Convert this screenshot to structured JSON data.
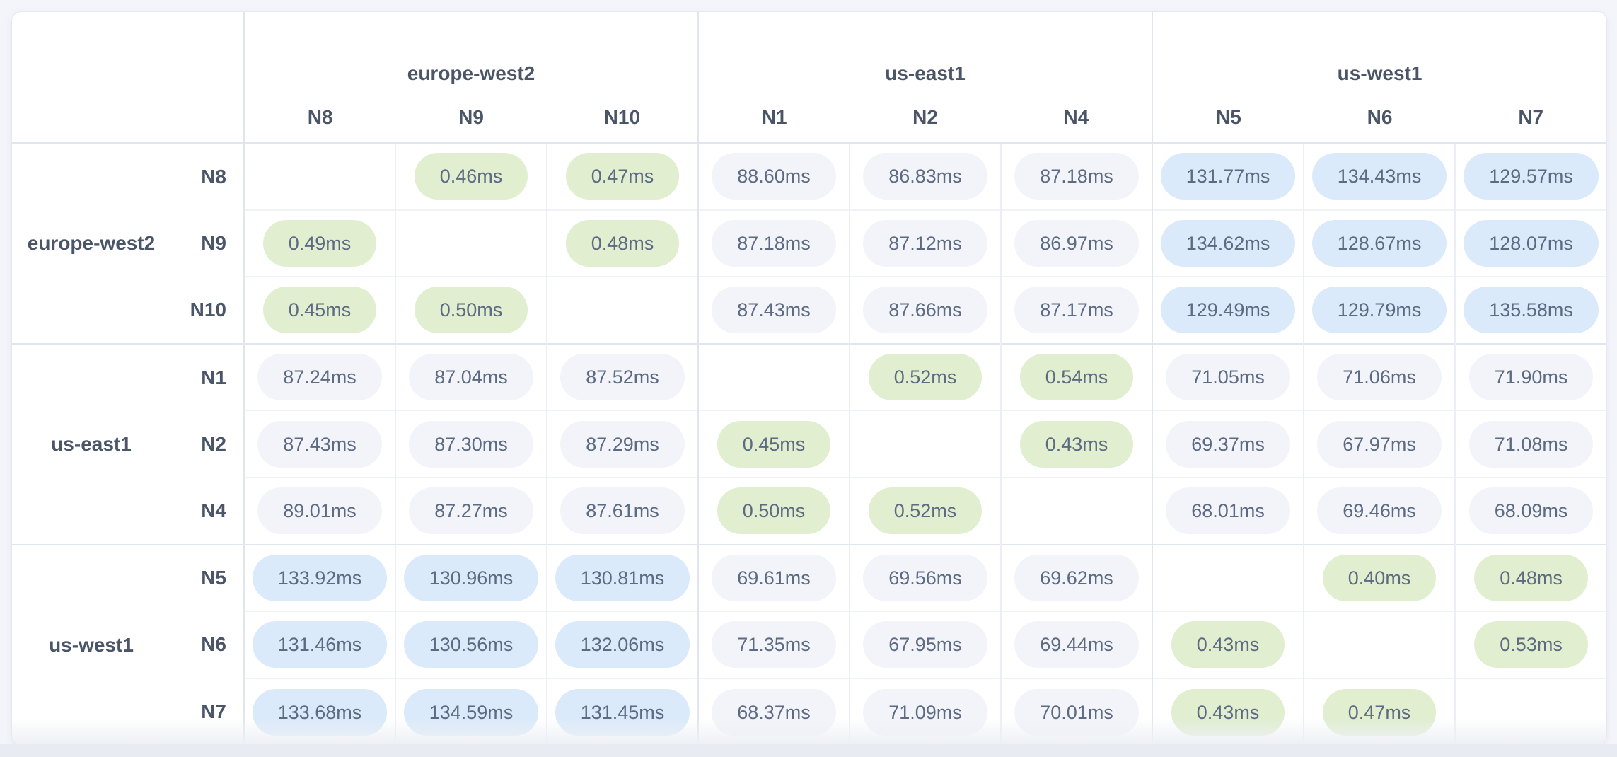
{
  "matrix": {
    "unit": "ms",
    "column_groups": [
      {
        "region": "europe-west2",
        "nodes": [
          "N8",
          "N9",
          "N10"
        ]
      },
      {
        "region": "us-east1",
        "nodes": [
          "N1",
          "N2",
          "N4"
        ]
      },
      {
        "region": "us-west1",
        "nodes": [
          "N5",
          "N6",
          "N7"
        ]
      }
    ],
    "row_groups": [
      {
        "region": "europe-west2",
        "nodes": [
          "N8",
          "N9",
          "N10"
        ]
      },
      {
        "region": "us-east1",
        "nodes": [
          "N1",
          "N2",
          "N4"
        ]
      },
      {
        "region": "us-west1",
        "nodes": [
          "N5",
          "N6",
          "N7"
        ]
      }
    ],
    "rows": [
      {
        "node": "N8",
        "cells": [
          null,
          "0.46ms",
          "0.47ms",
          "88.60ms",
          "86.83ms",
          "87.18ms",
          "131.77ms",
          "134.43ms",
          "129.57ms"
        ]
      },
      {
        "node": "N9",
        "cells": [
          "0.49ms",
          null,
          "0.48ms",
          "87.18ms",
          "87.12ms",
          "86.97ms",
          "134.62ms",
          "128.67ms",
          "128.07ms"
        ]
      },
      {
        "node": "N10",
        "cells": [
          "0.45ms",
          "0.50ms",
          null,
          "87.43ms",
          "87.66ms",
          "87.17ms",
          "129.49ms",
          "129.79ms",
          "135.58ms"
        ]
      },
      {
        "node": "N1",
        "cells": [
          "87.24ms",
          "87.04ms",
          "87.52ms",
          null,
          "0.52ms",
          "0.54ms",
          "71.05ms",
          "71.06ms",
          "71.90ms"
        ]
      },
      {
        "node": "N2",
        "cells": [
          "87.43ms",
          "87.30ms",
          "87.29ms",
          "0.45ms",
          null,
          "0.43ms",
          "69.37ms",
          "67.97ms",
          "71.08ms"
        ]
      },
      {
        "node": "N4",
        "cells": [
          "89.01ms",
          "87.27ms",
          "87.61ms",
          "0.50ms",
          "0.52ms",
          null,
          "68.01ms",
          "69.46ms",
          "68.09ms"
        ]
      },
      {
        "node": "N5",
        "cells": [
          "133.92ms",
          "130.96ms",
          "130.81ms",
          "69.61ms",
          "69.56ms",
          "69.62ms",
          null,
          "0.40ms",
          "0.48ms"
        ]
      },
      {
        "node": "N6",
        "cells": [
          "131.46ms",
          "130.56ms",
          "132.06ms",
          "71.35ms",
          "67.95ms",
          "69.44ms",
          "0.43ms",
          null,
          "0.53ms"
        ]
      },
      {
        "node": "N7",
        "cells": [
          "133.68ms",
          "134.59ms",
          "131.45ms",
          "68.37ms",
          "71.09ms",
          "70.01ms",
          "0.43ms",
          "0.47ms",
          null
        ]
      }
    ],
    "thresholds": {
      "low_max_ms": 1,
      "high_min_ms": 100
    }
  },
  "colors": {
    "low_pill": "#e1eecf",
    "mid_pill": "#f2f4f9",
    "high_pill": "#daeafa",
    "pill_text": "#5c6a82",
    "label_text": "#4b5568",
    "group_border": "#e1e6ee",
    "inner_border": "#ebeff5",
    "card_background": "#ffffff",
    "page_background": "#f3f5fa"
  }
}
